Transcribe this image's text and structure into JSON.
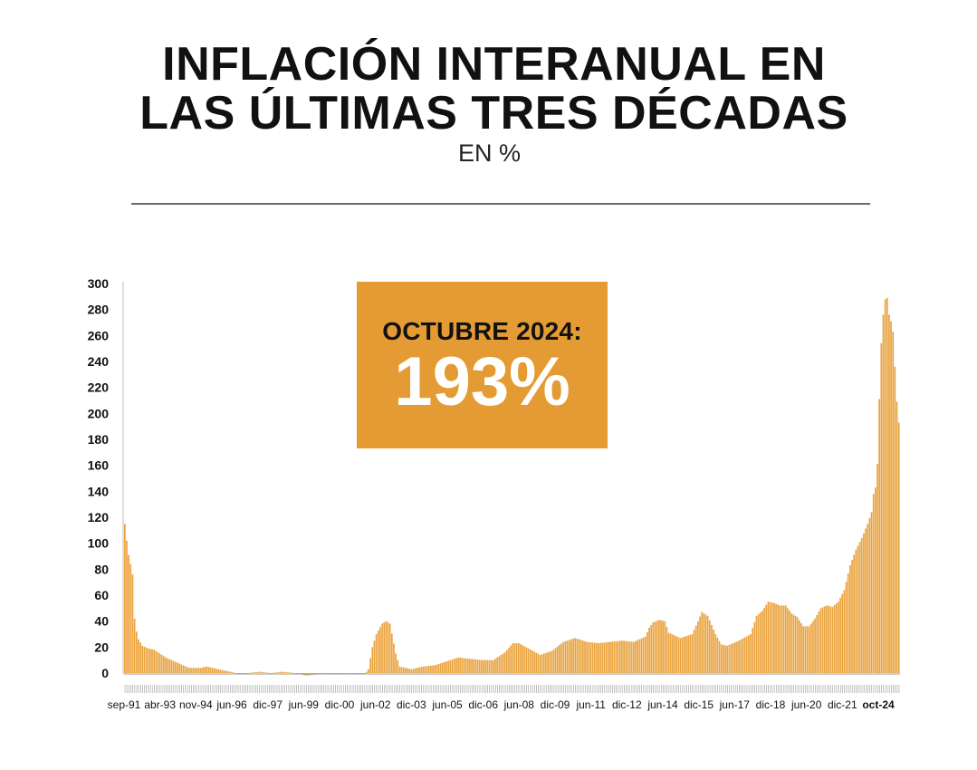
{
  "header": {
    "title_line1": "INFLACIÓN INTERANUAL EN",
    "title_line2": "LAS ÚLTIMAS TRES DÉCADAS",
    "subtitle": "EN %"
  },
  "callout": {
    "label": "OCTUBRE 2024:",
    "value": "193%",
    "color": "#E49B33"
  },
  "colors": {
    "bar": "#E9A23C",
    "bar_callout": "#E49B33",
    "axis": "#bdbdbd",
    "text": "#111111"
  },
  "chart_data": {
    "type": "bar",
    "title": "INFLACIÓN INTERANUAL EN LAS ÚLTIMAS TRES DÉCADAS",
    "ylabel": "EN %",
    "xlabel": "",
    "ylim": [
      0,
      300
    ],
    "yticks": [
      "0",
      "20",
      "40",
      "60",
      "80",
      "100",
      "120",
      "140",
      "160",
      "180",
      "200",
      "220",
      "240",
      "260",
      "280",
      "300"
    ],
    "x_tick_labels": [
      "sep-91",
      "abr-93",
      "nov-94",
      "jun-96",
      "dic-97",
      "jun-99",
      "dic-00",
      "jun-02",
      "dic-03",
      "jun-05",
      "dic-06",
      "jun-08",
      "dic-09",
      "jun-11",
      "dic-12",
      "jun-14",
      "dic-15",
      "jun-17",
      "dic-18",
      "jun-20",
      "dic-21",
      "oct-24"
    ],
    "period": {
      "start": "sep-91",
      "end": "oct-24",
      "frequency": "monthly"
    },
    "series": [
      {
        "name": "Inflación interanual (%)",
        "anchors": [
          [
            "sep-91",
            115
          ],
          [
            "oct-91",
            102
          ],
          [
            "nov-91",
            91
          ],
          [
            "dic-91",
            84
          ],
          [
            "ene-92",
            76
          ],
          [
            "feb-92",
            42
          ],
          [
            "mar-92",
            32
          ],
          [
            "abr-92",
            26
          ],
          [
            "jun-92",
            21
          ],
          [
            "sep-92",
            19
          ],
          [
            "dic-92",
            18
          ],
          [
            "mar-93",
            15
          ],
          [
            "jun-93",
            12
          ],
          [
            "dic-93",
            8
          ],
          [
            "jun-94",
            4
          ],
          [
            "dic-94",
            4
          ],
          [
            "mar-95",
            5
          ],
          [
            "jun-95",
            4
          ],
          [
            "dic-95",
            2
          ],
          [
            "jun-96",
            0
          ],
          [
            "dic-96",
            0
          ],
          [
            "jun-97",
            1
          ],
          [
            "dic-97",
            0
          ],
          [
            "jun-98",
            1
          ],
          [
            "dic-98",
            0
          ],
          [
            "jun-99",
            -2
          ],
          [
            "dic-99",
            -1
          ],
          [
            "jun-00",
            -1
          ],
          [
            "dic-00",
            -1
          ],
          [
            "jun-01",
            -1
          ],
          [
            "dic-01",
            -1
          ],
          [
            "feb-02",
            3
          ],
          [
            "abr-02",
            20
          ],
          [
            "jun-02",
            30
          ],
          [
            "sep-02",
            38
          ],
          [
            "nov-02",
            40
          ],
          [
            "ene-03",
            38
          ],
          [
            "abr-03",
            15
          ],
          [
            "jun-03",
            5
          ],
          [
            "dic-03",
            3
          ],
          [
            "jun-04",
            5
          ],
          [
            "dic-04",
            6
          ],
          [
            "jun-05",
            9
          ],
          [
            "dic-05",
            12
          ],
          [
            "jun-06",
            11
          ],
          [
            "dic-06",
            10
          ],
          [
            "jun-07",
            10
          ],
          [
            "dic-07",
            16
          ],
          [
            "abr-08",
            23
          ],
          [
            "jul-08",
            23
          ],
          [
            "dic-08",
            19
          ],
          [
            "jun-09",
            14
          ],
          [
            "dic-09",
            17
          ],
          [
            "jun-10",
            24
          ],
          [
            "dic-10",
            27
          ],
          [
            "jun-11",
            24
          ],
          [
            "dic-11",
            23
          ],
          [
            "jun-12",
            24
          ],
          [
            "dic-12",
            25
          ],
          [
            "jun-13",
            24
          ],
          [
            "dic-13",
            28
          ],
          [
            "feb-14",
            35
          ],
          [
            "abr-14",
            39
          ],
          [
            "jul-14",
            41
          ],
          [
            "oct-14",
            40
          ],
          [
            "dic-14",
            31
          ],
          [
            "jun-15",
            27
          ],
          [
            "dic-15",
            30
          ],
          [
            "mar-16",
            40
          ],
          [
            "may-16",
            47
          ],
          [
            "ago-16",
            44
          ],
          [
            "dic-16",
            30
          ],
          [
            "mar-17",
            22
          ],
          [
            "jun-17",
            21
          ],
          [
            "dic-17",
            25
          ],
          [
            "jun-18",
            30
          ],
          [
            "sep-18",
            44
          ],
          [
            "dic-18",
            48
          ],
          [
            "mar-19",
            55
          ],
          [
            "jun-19",
            54
          ],
          [
            "sep-19",
            52
          ],
          [
            "dic-19",
            52
          ],
          [
            "mar-20",
            46
          ],
          [
            "jun-20",
            43
          ],
          [
            "sep-20",
            36
          ],
          [
            "dic-20",
            36
          ],
          [
            "mar-21",
            42
          ],
          [
            "jun-21",
            50
          ],
          [
            "sep-21",
            52
          ],
          [
            "dic-21",
            51
          ],
          [
            "mar-22",
            55
          ],
          [
            "jun-22",
            64
          ],
          [
            "sep-22",
            83
          ],
          [
            "dic-22",
            95
          ],
          [
            "mar-23",
            104
          ],
          [
            "jun-23",
            115
          ],
          [
            "ago-23",
            124
          ],
          [
            "sep-23",
            138
          ],
          [
            "oct-23",
            143
          ],
          [
            "nov-23",
            161
          ],
          [
            "dic-23",
            211
          ],
          [
            "ene-24",
            254
          ],
          [
            "feb-24",
            276
          ],
          [
            "mar-24",
            288
          ],
          [
            "abr-24",
            289
          ],
          [
            "may-24",
            276
          ],
          [
            "jun-24",
            271
          ],
          [
            "jul-24",
            263
          ],
          [
            "ago-24",
            236
          ],
          [
            "sep-24",
            209
          ],
          [
            "oct-24",
            193
          ]
        ]
      }
    ],
    "annotations": [
      {
        "text": "OCTUBRE 2024: 193%",
        "x": "oct-24",
        "y": 193
      }
    ]
  }
}
